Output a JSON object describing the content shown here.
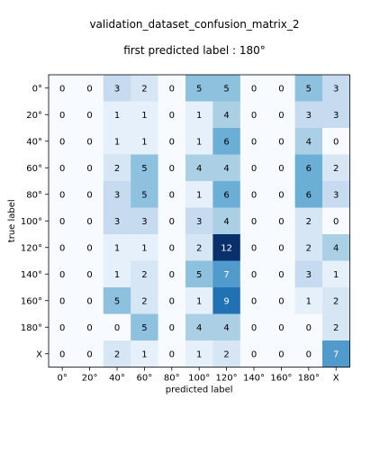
{
  "chart_data": {
    "type": "heatmap",
    "title": "validation_dataset_confusion_matrix_2",
    "subtitle": "first predicted label : 180°",
    "xlabel": "predicted label",
    "ylabel": "true label",
    "x_categories": [
      "0°",
      "20°",
      "40°",
      "60°",
      "80°",
      "100°",
      "120°",
      "140°",
      "160°",
      "180°",
      "X"
    ],
    "y_categories": [
      "0°",
      "20°",
      "40°",
      "60°",
      "80°",
      "100°",
      "120°",
      "140°",
      "160°",
      "180°",
      "X"
    ],
    "values": [
      [
        0,
        0,
        3,
        2,
        0,
        5,
        5,
        0,
        0,
        5,
        3
      ],
      [
        0,
        0,
        1,
        1,
        0,
        1,
        4,
        0,
        0,
        3,
        3
      ],
      [
        0,
        0,
        1,
        1,
        0,
        1,
        6,
        0,
        0,
        4,
        0
      ],
      [
        0,
        0,
        2,
        5,
        0,
        4,
        4,
        0,
        0,
        6,
        2
      ],
      [
        0,
        0,
        3,
        5,
        0,
        1,
        6,
        0,
        0,
        6,
        3
      ],
      [
        0,
        0,
        3,
        3,
        0,
        3,
        4,
        0,
        0,
        2,
        0
      ],
      [
        0,
        0,
        1,
        1,
        0,
        2,
        12,
        0,
        0,
        2,
        4
      ],
      [
        0,
        0,
        1,
        2,
        0,
        5,
        7,
        0,
        0,
        3,
        1
      ],
      [
        0,
        0,
        5,
        2,
        0,
        1,
        9,
        0,
        0,
        1,
        2
      ],
      [
        0,
        0,
        0,
        5,
        0,
        4,
        4,
        0,
        0,
        0,
        2
      ],
      [
        0,
        0,
        2,
        1,
        0,
        1,
        2,
        0,
        0,
        0,
        7
      ]
    ],
    "colormap": "Blues",
    "vmin": 0,
    "vmax": 12
  }
}
